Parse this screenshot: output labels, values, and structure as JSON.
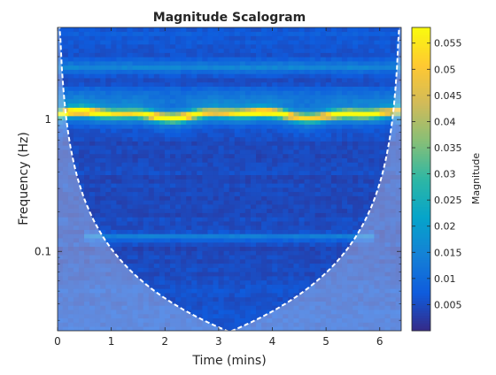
{
  "chart_data": {
    "type": "heatmap",
    "title": "Magnitude Scalogram",
    "xlabel": "Time (mins)",
    "ylabel": "Frequency (Hz)",
    "xlim": [
      0,
      6.4
    ],
    "ylim": [
      0.025,
      5
    ],
    "y_scale": "log",
    "x_ticks": [
      0,
      1,
      2,
      3,
      4,
      5,
      6
    ],
    "x_tick_labels": [
      "0",
      "1",
      "2",
      "3",
      "4",
      "5",
      "6"
    ],
    "y_ticks": [
      0.1,
      1
    ],
    "y_tick_labels": [
      "0.1",
      "1"
    ],
    "colorbar": {
      "label": "Magnitude",
      "range": [
        0,
        0.058
      ],
      "ticks": [
        0.005,
        0.01,
        0.015,
        0.02,
        0.025,
        0.03,
        0.035,
        0.04,
        0.045,
        0.05,
        0.055
      ],
      "tick_labels": [
        "0.005",
        "0.01",
        "0.015",
        "0.02",
        "0.025",
        "0.03",
        "0.035",
        "0.04",
        "0.045",
        "0.05",
        "0.055"
      ],
      "colormap": "parula",
      "colormap_stops": [
        "#352a87",
        "#0f5cdd",
        "#1481d6",
        "#06a4ca",
        "#2eb7a4",
        "#87bf77",
        "#d1bb59",
        "#fec832",
        "#f9fb0e"
      ]
    },
    "features": [
      {
        "name": "dominant ridge",
        "frequency_hz": 1.1,
        "x_range": [
          0,
          6.4
        ],
        "magnitude": 0.05
      },
      {
        "name": "secondary band",
        "frequency_hz": 2.5,
        "x_range": [
          0,
          6.4
        ],
        "magnitude": 0.018
      },
      {
        "name": "low-frequency band",
        "frequency_hz": 0.13,
        "x_range": [
          0.5,
          5.9
        ],
        "magnitude": 0.014
      }
    ],
    "cone_of_influence": {
      "style": "dashed white",
      "shading": "lighter outside cone",
      "minimum_frequency_hz": 0.025,
      "minimum_at_time": 3.15
    },
    "grid": false
  }
}
